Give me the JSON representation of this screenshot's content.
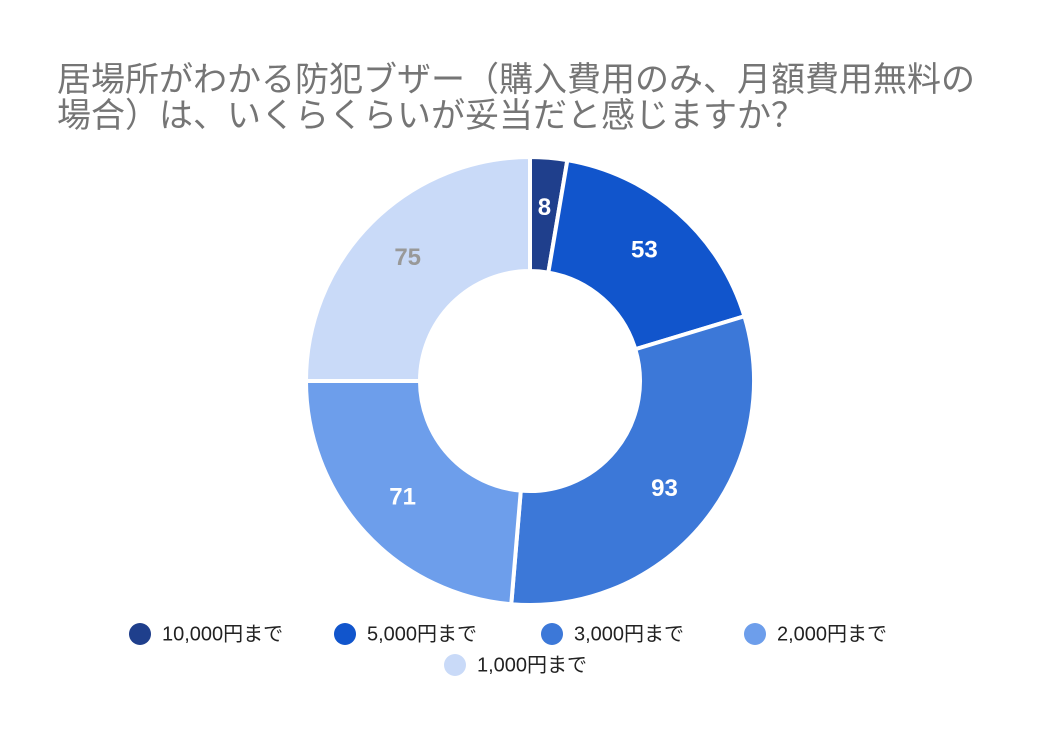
{
  "chart_data": {
    "type": "donut",
    "title": "居場所がわかる防犯ブザー（購入費用のみ、月額費用無料の場合）は、いくらくらいが妥当だと感じますか？",
    "categories": [
      "10,000円まで",
      "5,000円まで",
      "3,000円まで",
      "2,000円まで",
      "1,000円まで"
    ],
    "values": [
      8,
      53,
      93,
      71,
      75
    ],
    "colors": [
      "#1f3f8c",
      "#1155cc",
      "#3c78d8",
      "#6d9eeb",
      "#c9daf8"
    ],
    "value_label_colors": [
      "#ffffff",
      "#ffffff",
      "#ffffff",
      "#ffffff",
      "#999999"
    ],
    "legend": "bottom"
  }
}
